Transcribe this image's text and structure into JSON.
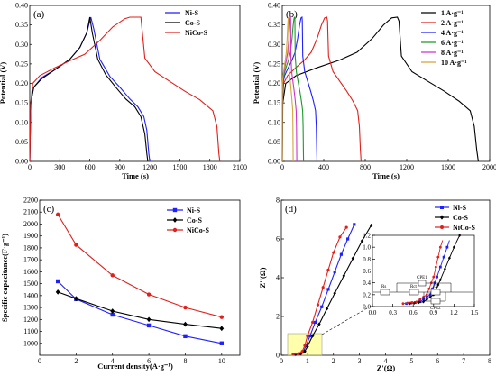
{
  "chart_data": [
    {
      "panel": "(a)",
      "type": "line",
      "xlabel": "Time (s)",
      "ylabel": "Potential (V)",
      "xlim": [
        0,
        2100
      ],
      "ylim": [
        0,
        0.4
      ],
      "xticks": [
        0,
        300,
        600,
        900,
        1200,
        1500,
        1800,
        2100
      ],
      "yticks": [
        0.0,
        0.05,
        0.1,
        0.15,
        0.2,
        0.25,
        0.3,
        0.35,
        0.4
      ],
      "legend_position": "top-right",
      "series": [
        {
          "name": "Ni-S",
          "color": "#1f1fff",
          "points": [
            [
              0,
              0
            ],
            [
              10,
              0.15
            ],
            [
              40,
              0.19
            ],
            [
              120,
              0.215
            ],
            [
              250,
              0.235
            ],
            [
              400,
              0.262
            ],
            [
              500,
              0.292
            ],
            [
              570,
              0.33
            ],
            [
              610,
              0.37
            ],
            [
              640,
              0.34
            ],
            [
              700,
              0.262
            ],
            [
              800,
              0.218
            ],
            [
              900,
              0.19
            ],
            [
              1000,
              0.16
            ],
            [
              1080,
              0.14
            ],
            [
              1140,
              0.115
            ],
            [
              1170,
              0.08
            ],
            [
              1190,
              0.02
            ],
            [
              1200,
              0
            ]
          ]
        },
        {
          "name": "Co-S",
          "color": "#000000",
          "points": [
            [
              0,
              0
            ],
            [
              10,
              0.15
            ],
            [
              40,
              0.19
            ],
            [
              120,
              0.212
            ],
            [
              250,
              0.235
            ],
            [
              400,
              0.262
            ],
            [
              500,
              0.292
            ],
            [
              570,
              0.33
            ],
            [
              600,
              0.37
            ],
            [
              625,
              0.33
            ],
            [
              680,
              0.262
            ],
            [
              760,
              0.222
            ],
            [
              860,
              0.19
            ],
            [
              960,
              0.16
            ],
            [
              1050,
              0.14
            ],
            [
              1110,
              0.115
            ],
            [
              1150,
              0.07
            ],
            [
              1170,
              0.02
            ],
            [
              1180,
              0
            ]
          ]
        },
        {
          "name": "NiCo-S",
          "color": "#e0201b",
          "points": [
            [
              0,
              0
            ],
            [
              10,
              0.15
            ],
            [
              30,
              0.2
            ],
            [
              100,
              0.22
            ],
            [
              250,
              0.24
            ],
            [
              400,
              0.258
            ],
            [
              550,
              0.275
            ],
            [
              700,
              0.31
            ],
            [
              830,
              0.345
            ],
            [
              950,
              0.366
            ],
            [
              1000,
              0.37
            ],
            [
              1110,
              0.37
            ],
            [
              1150,
              0.265
            ],
            [
              1250,
              0.23
            ],
            [
              1400,
              0.205
            ],
            [
              1550,
              0.18
            ],
            [
              1700,
              0.158
            ],
            [
              1830,
              0.13
            ],
            [
              1870,
              0.09
            ],
            [
              1890,
              0.02
            ],
            [
              1900,
              0
            ]
          ]
        }
      ]
    },
    {
      "panel": "(b)",
      "type": "line",
      "xlabel": "Time (s)",
      "ylabel": "Potential (V)",
      "xlim": [
        0,
        2000
      ],
      "ylim": [
        0,
        0.4
      ],
      "xticks": [
        0,
        400,
        800,
        1200,
        1600,
        2000
      ],
      "yticks": [
        0.0,
        0.05,
        0.1,
        0.15,
        0.2,
        0.25,
        0.3,
        0.35,
        0.4
      ],
      "legend_position": "top-right",
      "series": [
        {
          "name": "1 A·g⁻¹",
          "color": "#000000",
          "peak_time": 1110,
          "end_time": 1890
        },
        {
          "name": "2 A·g⁻¹",
          "color": "#e0201b",
          "peak_time": 430,
          "end_time": 760
        },
        {
          "name": "4 A·g⁻¹",
          "color": "#1f1fff",
          "peak_time": 190,
          "end_time": 335
        },
        {
          "name": "6 A·g⁻¹",
          "color": "#1c9a2a",
          "peak_time": 120,
          "end_time": 205
        },
        {
          "name": "8 A·g⁻¹",
          "color": "#cc33cc",
          "peak_time": 80,
          "end_time": 140
        },
        {
          "name": "10 A·g⁻¹",
          "color": "#d4a537",
          "peak_time": 60,
          "end_time": 105
        }
      ]
    },
    {
      "panel": "(c)",
      "type": "line",
      "xlabel": "Current density(A·g⁻¹)",
      "ylabel": "Specific capacitance(F·g⁻¹)",
      "xlim": [
        0,
        11
      ],
      "ylim": [
        900,
        2200
      ],
      "xticks": [
        0,
        2,
        4,
        6,
        8,
        10
      ],
      "yticks": [
        1000,
        1100,
        1200,
        1300,
        1400,
        1500,
        1600,
        1700,
        1800,
        1900,
        2000,
        2100,
        2200
      ],
      "legend_position": "top-right",
      "x": [
        1,
        2,
        4,
        6,
        8,
        10
      ],
      "series": [
        {
          "name": "Ni-S",
          "color": "#1f1fff",
          "marker": "square",
          "values": [
            1520,
            1370,
            1240,
            1150,
            1060,
            1000
          ]
        },
        {
          "name": "Co-S",
          "color": "#000000",
          "marker": "diamond",
          "values": [
            1430,
            1375,
            1270,
            1200,
            1160,
            1125
          ]
        },
        {
          "name": "NiCo-S",
          "color": "#e0201b",
          "marker": "circle",
          "values": [
            2080,
            1825,
            1570,
            1410,
            1300,
            1220
          ]
        }
      ]
    },
    {
      "panel": "(d)",
      "type": "scatter",
      "xlabel": "Z'(Ω)",
      "ylabel": "Z''(Ω)",
      "xlim": [
        0,
        8
      ],
      "ylim": [
        0,
        8
      ],
      "xticks": [
        0,
        1,
        2,
        3,
        4,
        5,
        6,
        7,
        8
      ],
      "yticks": [
        0,
        2,
        4,
        6,
        8
      ],
      "legend_position": "top-right",
      "series": [
        {
          "name": "Ni-S",
          "color": "#1f1fff",
          "marker": "square",
          "points": [
            [
              0.5,
              0.05
            ],
            [
              0.7,
              0.08
            ],
            [
              0.85,
              0.2
            ],
            [
              0.95,
              0.5
            ],
            [
              1.1,
              1.0
            ],
            [
              1.3,
              1.7
            ],
            [
              1.55,
              2.5
            ],
            [
              1.8,
              3.4
            ],
            [
              2.05,
              4.3
            ],
            [
              2.3,
              5.2
            ],
            [
              2.55,
              6.0
            ],
            [
              2.8,
              6.75
            ]
          ]
        },
        {
          "name": "Co-S",
          "color": "#000000",
          "marker": "diamond",
          "points": [
            [
              0.55,
              0.05
            ],
            [
              0.75,
              0.08
            ],
            [
              0.9,
              0.2
            ],
            [
              1.0,
              0.45
            ],
            [
              1.2,
              1.0
            ],
            [
              1.45,
              1.6
            ],
            [
              1.75,
              2.4
            ],
            [
              2.05,
              3.2
            ],
            [
              2.4,
              4.1
            ],
            [
              2.75,
              5.0
            ],
            [
              3.1,
              5.9
            ],
            [
              3.45,
              6.7
            ]
          ]
        },
        {
          "name": "NiCo-S",
          "color": "#e0201b",
          "marker": "circle",
          "points": [
            [
              0.45,
              0.05
            ],
            [
              0.65,
              0.08
            ],
            [
              0.8,
              0.2
            ],
            [
              0.9,
              0.5
            ],
            [
              1.0,
              1.0
            ],
            [
              1.2,
              1.7
            ],
            [
              1.4,
              2.6
            ],
            [
              1.6,
              3.5
            ],
            [
              1.8,
              4.4
            ],
            [
              2.0,
              5.3
            ],
            [
              2.25,
              6.1
            ],
            [
              2.5,
              6.6
            ]
          ]
        }
      ],
      "inset": {
        "xlim": [
          0,
          1.5
        ],
        "ylim": [
          0,
          1.2
        ],
        "xticks": [
          0.0,
          0.3,
          0.6,
          0.9,
          1.2,
          1.5
        ],
        "yticks": [
          0.0,
          0.2,
          0.4,
          0.6,
          0.8,
          1.0,
          1.2
        ],
        "circuit_labels": [
          "Rs",
          "CPE1",
          "Rct",
          "Zw",
          "CPE2"
        ]
      }
    }
  ],
  "panels": {
    "a": {
      "tag": "(a)",
      "xlabel": "Time (s)",
      "ylabel": "Potential (V)",
      "legend": [
        "Ni-S",
        "Co-S",
        "NiCo-S"
      ]
    },
    "b": {
      "tag": "(b)",
      "xlabel": "Time (s)",
      "ylabel": "Potential (V)",
      "legend": [
        "1 A·g⁻¹",
        "2 A·g⁻¹",
        "4 A·g⁻¹",
        "6 A·g⁻¹",
        "8 A·g⁻¹",
        "10 A·g⁻¹"
      ]
    },
    "c": {
      "tag": "(c)",
      "xlabel": "Current density(A·g⁻¹)",
      "ylabel": "Specific capacitance(F·g⁻¹)",
      "legend": [
        "Ni-S",
        "Co-S",
        "NiCo-S"
      ]
    },
    "d": {
      "tag": "(d)",
      "xlabel": "Z'(Ω)",
      "ylabel": "Z''(Ω)",
      "legend": [
        "Ni-S",
        "Co-S",
        "NiCo-S"
      ]
    }
  }
}
